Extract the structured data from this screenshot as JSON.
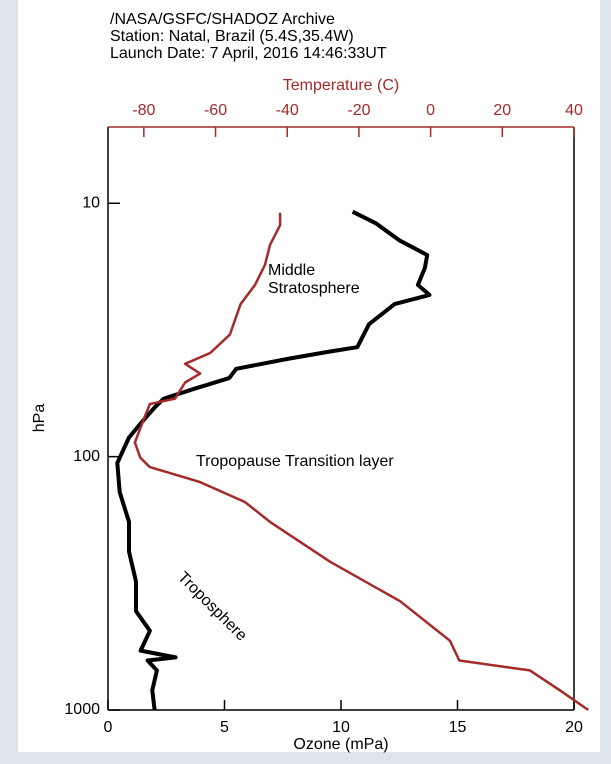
{
  "chart_data": {
    "type": "profile",
    "title": [
      "/NASA/GSFC/SHADOZ Archive",
      "Station: Natal, Brazil (5.4S,35.4W)",
      "Launch Date: 7 April, 2016  14:46:33UT"
    ],
    "xlabel": "Ozone (mPa)",
    "x2label": "Temperature (C)",
    "ylabel": "hPa",
    "xlim": [
      0,
      20
    ],
    "xticks": [
      0,
      5,
      10,
      15,
      20
    ],
    "x2lim": [
      -90,
      40
    ],
    "x2ticks": [
      -80,
      -60,
      -40,
      -20,
      0,
      20,
      40
    ],
    "ylim": [
      1000,
      5
    ],
    "yticks": [
      10,
      100,
      1000
    ],
    "ylog": true,
    "annotations": [
      "Middle",
      "Stratosphere",
      "Tropopause Transition layer",
      "Troposphere"
    ],
    "series": [
      {
        "color": "#000000",
        "axis": "x",
        "x": [
          2.0,
          1.9,
          2.1,
          1.7,
          2.9,
          1.4,
          1.8,
          1.2,
          1.2,
          0.9,
          0.9,
          0.5,
          0.4,
          0.9,
          1.4,
          2.0,
          2.4,
          3.7,
          5.2,
          5.5,
          7.8,
          9.5,
          10.7,
          11.2,
          12.3,
          13.8,
          13.3,
          13.6,
          13.7,
          12.5,
          11.5,
          10.5
        ],
        "y": [
          1000,
          835,
          698,
          638,
          620,
          583,
          487,
          407,
          311,
          237,
          181,
          138,
          106,
          84,
          74,
          64,
          59,
          54,
          49,
          45,
          41,
          38.5,
          37,
          30,
          25,
          23,
          21,
          18,
          16,
          14,
          12,
          10.8
        ]
      },
      {
        "color": "#a52a2a",
        "axis": "x2",
        "x": [
          44,
          36,
          27.7,
          8,
          5.4,
          -8.5,
          -28,
          -44.8,
          -51.8,
          -64.3,
          -78.3,
          -81,
          -82.5,
          -80.5,
          -78.3,
          -71.3,
          -68.5,
          -64.3,
          -68.5,
          -61.5,
          -56,
          -53,
          -49,
          -46.2,
          -44.8,
          -42,
          -42
        ],
        "y": [
          1000,
          835,
          698,
          638,
          533,
          372,
          260,
          181,
          151,
          126,
          110,
          101,
          88,
          74,
          62,
          59,
          51,
          47,
          43,
          39,
          33,
          25,
          21,
          17.5,
          14.6,
          12.2,
          10.9
        ]
      }
    ]
  }
}
